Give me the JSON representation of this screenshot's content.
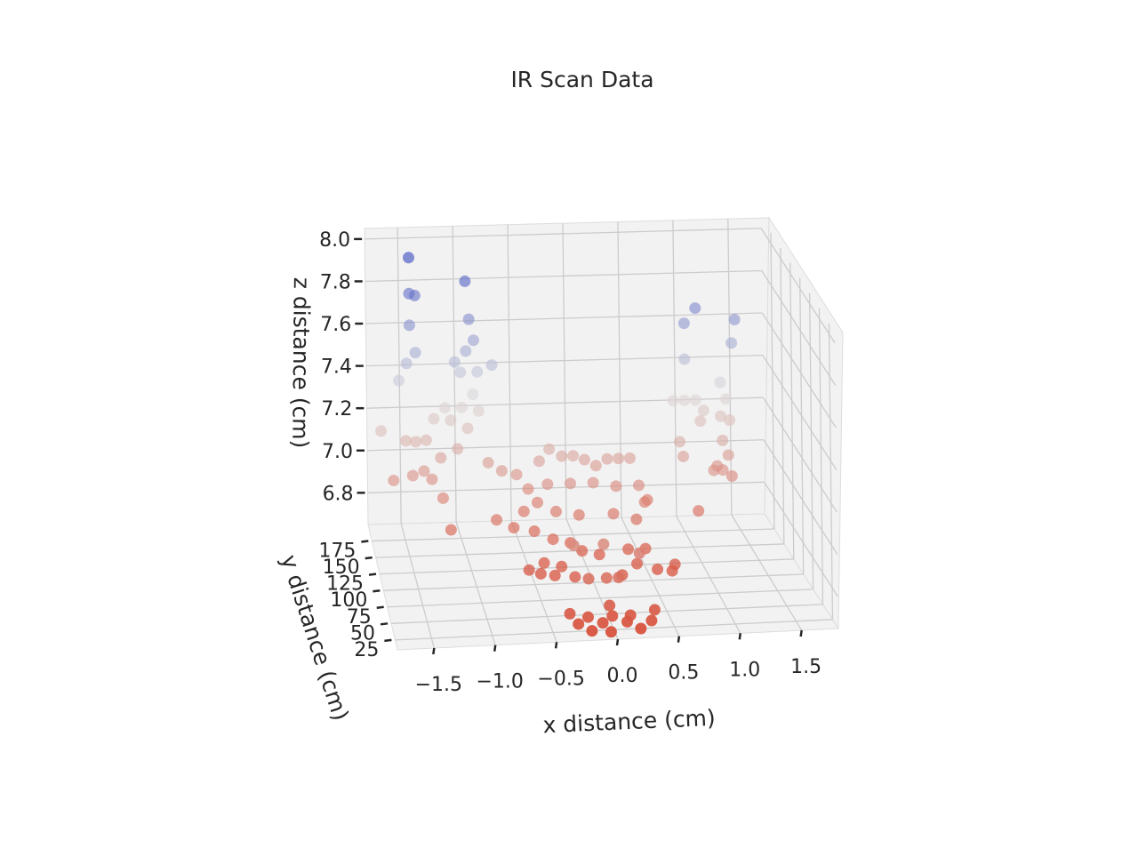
{
  "chart_data": {
    "type": "scatter",
    "projection": "3d",
    "title": "IR Scan Data",
    "xlabel": "x distance (cm)",
    "ylabel": "y distance (cm)",
    "zlabel": "z distance (cm)",
    "xlim": [
      -1.8,
      1.8
    ],
    "ylim": [
      10,
      200
    ],
    "zlim": [
      6.65,
      8.05
    ],
    "x_ticks": [
      "−1.5",
      "−1.0",
      "−0.5",
      "0.0",
      "0.5",
      "1.0",
      "1.5"
    ],
    "y_ticks": [
      "25",
      "50",
      "75",
      "100",
      "125",
      "150",
      "175"
    ],
    "z_ticks": [
      "6.8",
      "7.0",
      "7.2",
      "7.4",
      "7.6",
      "7.8",
      "8.0"
    ],
    "grid": true,
    "colormap": "coolwarm",
    "colormap_low": "#3b4cc0",
    "colormap_mid": "#dddddd",
    "colormap_high": "#d8523d",
    "pane_color": "#f2f2f2",
    "grid_color": "#cccccc",
    "points": [
      {
        "x": -1.45,
        "y": 170,
        "z": 8.0
      },
      {
        "x": -1.45,
        "y": 170,
        "z": 7.83
      },
      {
        "x": -1.4,
        "y": 170,
        "z": 7.82
      },
      {
        "x": -1.45,
        "y": 170,
        "z": 7.68
      },
      {
        "x": -1.4,
        "y": 170,
        "z": 7.55
      },
      {
        "x": -1.48,
        "y": 170,
        "z": 7.5
      },
      {
        "x": -1.55,
        "y": 170,
        "z": 7.42
      },
      {
        "x": -1.72,
        "y": 165,
        "z": 7.2
      },
      {
        "x": -1.5,
        "y": 165,
        "z": 7.15
      },
      {
        "x": -1.42,
        "y": 160,
        "z": 7.16
      },
      {
        "x": -1.45,
        "y": 160,
        "z": 7.0
      },
      {
        "x": -1.62,
        "y": 160,
        "z": 6.98
      },
      {
        "x": -1.35,
        "y": 160,
        "z": 7.02
      },
      {
        "x": -1.28,
        "y": 160,
        "z": 6.98
      },
      {
        "x": -1.2,
        "y": 160,
        "z": 7.08
      },
      {
        "x": -1.32,
        "y": 165,
        "z": 7.15
      },
      {
        "x": -1.25,
        "y": 165,
        "z": 7.25
      },
      {
        "x": -1.15,
        "y": 165,
        "z": 7.3
      },
      {
        "x": -1.05,
        "y": 170,
        "z": 7.5
      },
      {
        "x": -1.0,
        "y": 170,
        "z": 7.45
      },
      {
        "x": -0.95,
        "y": 170,
        "z": 7.88
      },
      {
        "x": -0.92,
        "y": 170,
        "z": 7.7
      },
      {
        "x": -0.88,
        "y": 170,
        "z": 7.6
      },
      {
        "x": -0.85,
        "y": 170,
        "z": 7.45
      },
      {
        "x": -0.95,
        "y": 170,
        "z": 7.55
      },
      {
        "x": -0.9,
        "y": 165,
        "z": 7.36
      },
      {
        "x": -1.0,
        "y": 165,
        "z": 7.3
      },
      {
        "x": -1.1,
        "y": 165,
        "z": 7.24
      },
      {
        "x": -1.05,
        "y": 160,
        "z": 7.12
      },
      {
        "x": -0.95,
        "y": 165,
        "z": 7.2
      },
      {
        "x": -0.85,
        "y": 165,
        "z": 7.28
      },
      {
        "x": -0.72,
        "y": 170,
        "z": 7.48
      },
      {
        "x": -0.78,
        "y": 160,
        "z": 7.05
      },
      {
        "x": -1.2,
        "y": 150,
        "z": 6.92
      },
      {
        "x": -1.15,
        "y": 140,
        "z": 6.8
      },
      {
        "x": 1.1,
        "y": 170,
        "z": 7.72
      },
      {
        "x": 1.0,
        "y": 170,
        "z": 7.65
      },
      {
        "x": 1.45,
        "y": 170,
        "z": 7.66
      },
      {
        "x": 1.42,
        "y": 170,
        "z": 7.55
      },
      {
        "x": 1.0,
        "y": 170,
        "z": 7.48
      },
      {
        "x": 1.3,
        "y": 165,
        "z": 7.38
      },
      {
        "x": 1.35,
        "y": 165,
        "z": 7.3
      },
      {
        "x": 1.3,
        "y": 165,
        "z": 7.22
      },
      {
        "x": 1.38,
        "y": 165,
        "z": 7.2
      },
      {
        "x": 1.3,
        "y": 160,
        "z": 7.12
      },
      {
        "x": 1.25,
        "y": 160,
        "z": 7.0
      },
      {
        "x": 1.3,
        "y": 160,
        "z": 6.98
      },
      {
        "x": 1.38,
        "y": 160,
        "z": 6.95
      },
      {
        "x": 1.22,
        "y": 160,
        "z": 6.98
      },
      {
        "x": 1.35,
        "y": 160,
        "z": 7.05
      },
      {
        "x": 0.88,
        "y": 165,
        "z": 7.3
      },
      {
        "x": 0.98,
        "y": 165,
        "z": 7.3
      },
      {
        "x": 1.08,
        "y": 165,
        "z": 7.3
      },
      {
        "x": 1.15,
        "y": 165,
        "z": 7.25
      },
      {
        "x": 1.12,
        "y": 165,
        "z": 7.2
      },
      {
        "x": 0.92,
        "y": 160,
        "z": 7.12
      },
      {
        "x": 0.95,
        "y": 160,
        "z": 7.05
      },
      {
        "x": 1.05,
        "y": 150,
        "z": 6.82
      },
      {
        "x": 0.6,
        "y": 150,
        "z": 6.88
      },
      {
        "x": -0.68,
        "y": 150,
        "z": 7.04
      },
      {
        "x": -0.75,
        "y": 140,
        "z": 6.84
      },
      {
        "x": -0.55,
        "y": 150,
        "z": 7.02
      },
      {
        "x": -0.45,
        "y": 150,
        "z": 6.95
      },
      {
        "x": -0.38,
        "y": 145,
        "z": 6.9
      },
      {
        "x": -0.5,
        "y": 145,
        "z": 6.86
      },
      {
        "x": -0.6,
        "y": 140,
        "z": 6.8
      },
      {
        "x": -0.42,
        "y": 140,
        "z": 6.78
      },
      {
        "x": -0.35,
        "y": 150,
        "z": 7.08
      },
      {
        "x": -0.25,
        "y": 155,
        "z": 7.12
      },
      {
        "x": -0.15,
        "y": 150,
        "z": 7.1
      },
      {
        "x": -0.05,
        "y": 150,
        "z": 7.1
      },
      {
        "x": 0.05,
        "y": 150,
        "z": 7.08
      },
      {
        "x": 0.15,
        "y": 150,
        "z": 7.05
      },
      {
        "x": 0.25,
        "y": 150,
        "z": 7.08
      },
      {
        "x": 0.35,
        "y": 150,
        "z": 7.08
      },
      {
        "x": 0.45,
        "y": 150,
        "z": 7.08
      },
      {
        "x": -0.3,
        "y": 140,
        "z": 7.0
      },
      {
        "x": -0.1,
        "y": 140,
        "z": 7.0
      },
      {
        "x": 0.1,
        "y": 140,
        "z": 7.0
      },
      {
        "x": 0.3,
        "y": 140,
        "z": 6.98
      },
      {
        "x": 0.5,
        "y": 140,
        "z": 6.98
      },
      {
        "x": 0.55,
        "y": 140,
        "z": 6.9
      },
      {
        "x": -0.25,
        "y": 130,
        "z": 6.9
      },
      {
        "x": -0.05,
        "y": 130,
        "z": 6.88
      },
      {
        "x": 0.25,
        "y": 130,
        "z": 6.88
      },
      {
        "x": 0.45,
        "y": 130,
        "z": 6.85
      },
      {
        "x": -0.3,
        "y": 120,
        "z": 6.8
      },
      {
        "x": -0.15,
        "y": 120,
        "z": 6.78
      },
      {
        "x": -0.05,
        "y": 120,
        "z": 6.74
      },
      {
        "x": 0.1,
        "y": 120,
        "z": 6.72
      },
      {
        "x": 0.35,
        "y": 120,
        "z": 6.74
      },
      {
        "x": 0.5,
        "y": 120,
        "z": 6.74
      },
      {
        "x": -0.4,
        "y": 110,
        "z": 6.72
      },
      {
        "x": -0.25,
        "y": 110,
        "z": 6.7
      },
      {
        "x": 0.4,
        "y": 110,
        "z": 6.7
      },
      {
        "x": -0.55,
        "y": 100,
        "z": 6.72
      },
      {
        "x": -0.45,
        "y": 100,
        "z": 6.7
      },
      {
        "x": 0.55,
        "y": 100,
        "z": 6.7
      },
      {
        "x": 0.7,
        "y": 100,
        "z": 6.72
      },
      {
        "x": -0.35,
        "y": 90,
        "z": 6.72
      },
      {
        "x": 0.65,
        "y": 90,
        "z": 6.72
      },
      {
        "x": -0.2,
        "y": 80,
        "z": 6.74
      },
      {
        "x": 0.2,
        "y": 80,
        "z": 6.74
      },
      {
        "x": -0.25,
        "y": 60,
        "z": 6.95
      },
      {
        "x": 0.0,
        "y": 60,
        "z": 6.95
      },
      {
        "x": 0.3,
        "y": 60,
        "z": 6.9
      },
      {
        "x": -0.15,
        "y": 50,
        "z": 6.82
      },
      {
        "x": 0.0,
        "y": 50,
        "z": 6.82
      },
      {
        "x": 0.1,
        "y": 50,
        "z": 6.82
      },
      {
        "x": 0.0,
        "y": 40,
        "z": 6.72
      },
      {
        "x": 0.0,
        "y": 30,
        "z": 6.7
      },
      {
        "x": -0.35,
        "y": 30,
        "z": 6.72
      },
      {
        "x": -0.2,
        "y": 30,
        "z": 6.7
      },
      {
        "x": 0.15,
        "y": 30,
        "z": 6.7
      },
      {
        "x": 0.35,
        "y": 30,
        "z": 6.72
      },
      {
        "x": -0.3,
        "y": 20,
        "z": 6.7
      },
      {
        "x": -0.1,
        "y": 20,
        "z": 6.7
      },
      {
        "x": 0.1,
        "y": 20,
        "z": 6.7
      },
      {
        "x": 0.3,
        "y": 20,
        "z": 6.7
      },
      {
        "x": -0.2,
        "y": 15,
        "z": 6.68
      },
      {
        "x": 0.2,
        "y": 15,
        "z": 6.68
      },
      {
        "x": -0.05,
        "y": 12,
        "z": 6.68
      }
    ]
  }
}
